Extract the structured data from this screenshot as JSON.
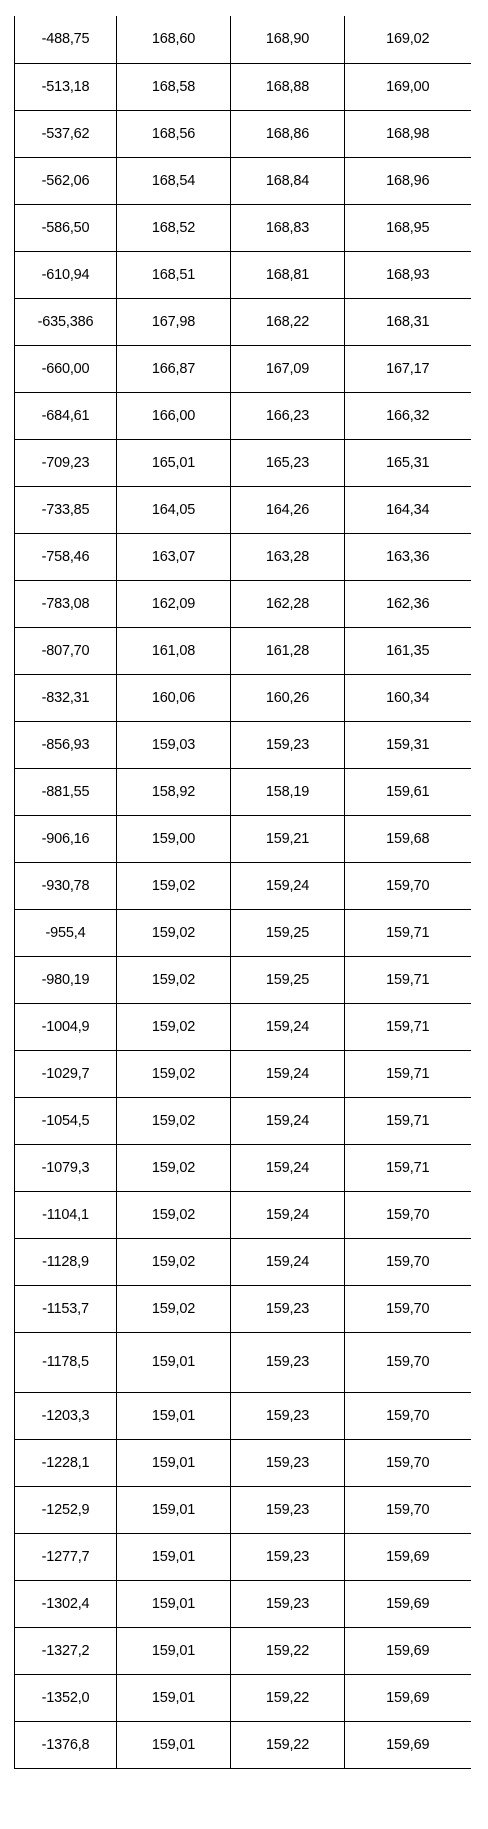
{
  "table": {
    "rows": [
      [
        "-488,75",
        "168,60",
        "168,90",
        "169,02"
      ],
      [
        "-513,18",
        "168,58",
        "168,88",
        "169,00"
      ],
      [
        "-537,62",
        "168,56",
        "168,86",
        "168,98"
      ],
      [
        "-562,06",
        "168,54",
        "168,84",
        "168,96"
      ],
      [
        "-586,50",
        "168,52",
        "168,83",
        "168,95"
      ],
      [
        "-610,94",
        "168,51",
        "168,81",
        "168,93"
      ],
      [
        "-635,386",
        "167,98",
        "168,22",
        "168,31"
      ],
      [
        "-660,00",
        "166,87",
        "167,09",
        "167,17"
      ],
      [
        "-684,61",
        "166,00",
        "166,23",
        "166,32"
      ],
      [
        "-709,23",
        "165,01",
        "165,23",
        "165,31"
      ],
      [
        "-733,85",
        "164,05",
        "164,26",
        "164,34"
      ],
      [
        "-758,46",
        "163,07",
        "163,28",
        "163,36"
      ],
      [
        "-783,08",
        "162,09",
        "162,28",
        "162,36"
      ],
      [
        "-807,70",
        "161,08",
        "161,28",
        "161,35"
      ],
      [
        "-832,31",
        "160,06",
        "160,26",
        "160,34"
      ],
      [
        "-856,93",
        "159,03",
        "159,23",
        "159,31"
      ],
      [
        "-881,55",
        "158,92",
        "158,19",
        "159,61"
      ],
      [
        "-906,16",
        "159,00",
        "159,21",
        "159,68"
      ],
      [
        "-930,78",
        "159,02",
        "159,24",
        "159,70"
      ],
      [
        "-955,4",
        "159,02",
        "159,25",
        "159,71"
      ],
      [
        "-980,19",
        "159,02",
        "159,25",
        "159,71"
      ],
      [
        "-1004,9",
        "159,02",
        "159,24",
        "159,71"
      ],
      [
        "-1029,7",
        "159,02",
        "159,24",
        "159,71"
      ],
      [
        "-1054,5",
        "159,02",
        "159,24",
        "159,71"
      ],
      [
        "-1079,3",
        "159,02",
        "159,24",
        "159,71"
      ],
      [
        "-1104,1",
        "159,02",
        "159,24",
        "159,70"
      ],
      [
        "-1128,9",
        "159,02",
        "159,24",
        "159,70"
      ],
      [
        "-1153,7",
        "159,02",
        "159,23",
        "159,70"
      ],
      [
        "-1178,5",
        "159,01",
        "159,23",
        "159,70"
      ],
      [
        "-1203,3",
        "159,01",
        "159,23",
        "159,70"
      ],
      [
        "-1228,1",
        "159,01",
        "159,23",
        "159,70"
      ],
      [
        "-1252,9",
        "159,01",
        "159,23",
        "159,70"
      ],
      [
        "-1277,7",
        "159,01",
        "159,23",
        "159,69"
      ],
      [
        "-1302,4",
        "159,01",
        "159,23",
        "159,69"
      ],
      [
        "-1327,2",
        "159,01",
        "159,22",
        "159,69"
      ],
      [
        "-1352,0",
        "159,01",
        "159,22",
        "159,69"
      ],
      [
        "-1376,8",
        "159,01",
        "159,22",
        "159,69"
      ]
    ]
  }
}
